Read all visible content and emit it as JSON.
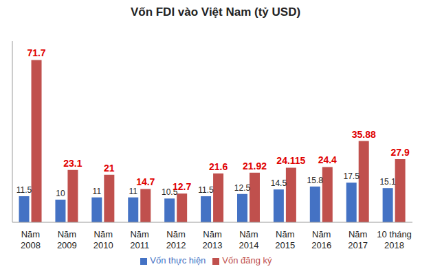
{
  "chart_data": {
    "type": "bar",
    "title": "Vốn FDI vào Việt Nam (tỷ USD)",
    "categories": [
      "Năm 2008",
      "Năm 2009",
      "Năm 2010",
      "Năm 2011",
      "Năm 2012",
      "Năm 2013",
      "Năm 2014",
      "Năm 2015",
      "Năm 2016",
      "Năm 2017",
      "10 tháng 2018"
    ],
    "series": [
      {
        "name": "Vốn thực hiện",
        "color": "#4472c4",
        "values": [
          11.5,
          10,
          11,
          11,
          10.5,
          11.5,
          12.5,
          14.5,
          15.8,
          17.5,
          15.1
        ]
      },
      {
        "name": "Vốn đăng ký",
        "color": "#c0504d",
        "values": [
          71.7,
          23.1,
          21,
          14.7,
          12.7,
          21.6,
          21.92,
          24.115,
          24.4,
          35.88,
          27.9
        ]
      }
    ],
    "ylim": [
      0,
      80
    ],
    "tick_labels": "x",
    "data_labels": true,
    "legend": "bottom",
    "grid": false
  }
}
